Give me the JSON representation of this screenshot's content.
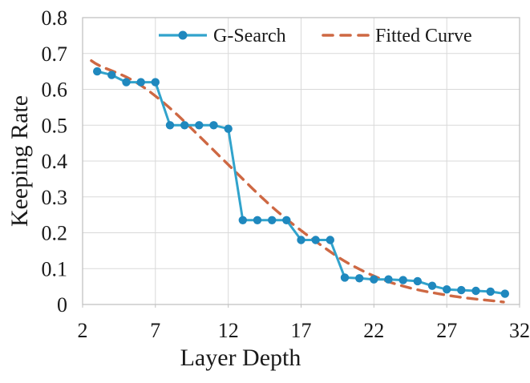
{
  "chart_data": {
    "type": "line",
    "title": "",
    "xlabel": "Layer Depth",
    "ylabel": "Keeping Rate",
    "xlim": [
      2,
      32
    ],
    "ylim": [
      0,
      0.8
    ],
    "xticks": [
      2,
      7,
      12,
      17,
      22,
      27,
      32
    ],
    "xtick_labels": [
      "2",
      "7",
      "12",
      "17",
      "22",
      "27",
      "32"
    ],
    "yticks": [
      0,
      0.1,
      0.2,
      0.3,
      0.4,
      0.5,
      0.6,
      0.7,
      0.8
    ],
    "ytick_labels": [
      "0",
      "0.1",
      "0.2",
      "0.3",
      "0.4",
      "0.5",
      "0.6",
      "0.7",
      "0.8"
    ],
    "grid": true,
    "legend_position": "top-center-inside",
    "colors": {
      "grid": "#d9d9d9",
      "axis_border": "#bfbfbf",
      "text": "#1a1a1a",
      "background": "#ffffff"
    },
    "series": [
      {
        "name": "G-Search",
        "style": "solid-with-markers",
        "line_color": "#31a3cc",
        "marker_color": "#1f88be",
        "x": [
          3,
          4,
          5,
          6,
          7,
          8,
          9,
          10,
          11,
          12,
          13,
          14,
          15,
          16,
          17,
          18,
          19,
          20,
          21,
          22,
          23,
          24,
          25,
          26,
          27,
          28,
          29,
          30,
          31
        ],
        "y": [
          0.65,
          0.64,
          0.62,
          0.62,
          0.62,
          0.5,
          0.5,
          0.5,
          0.5,
          0.49,
          0.235,
          0.235,
          0.235,
          0.235,
          0.18,
          0.18,
          0.18,
          0.075,
          0.073,
          0.07,
          0.07,
          0.068,
          0.065,
          0.052,
          0.042,
          0.04,
          0.038,
          0.036,
          0.03
        ]
      },
      {
        "name": "Fitted Curve",
        "style": "dashed",
        "line_color": "#ce6843",
        "x": [
          2.6,
          3,
          4,
          5,
          6,
          7,
          8,
          9,
          10,
          11,
          12,
          13,
          14,
          15,
          16,
          17,
          18,
          19,
          20,
          21,
          22,
          23,
          24,
          25,
          26,
          27,
          28,
          29,
          30,
          30.9
        ],
        "y": [
          0.68,
          0.668,
          0.652,
          0.635,
          0.612,
          0.582,
          0.548,
          0.51,
          0.47,
          0.43,
          0.39,
          0.35,
          0.31,
          0.272,
          0.238,
          0.206,
          0.176,
          0.147,
          0.12,
          0.098,
          0.079,
          0.063,
          0.051,
          0.041,
          0.033,
          0.026,
          0.02,
          0.015,
          0.011,
          0.007
        ]
      }
    ]
  }
}
